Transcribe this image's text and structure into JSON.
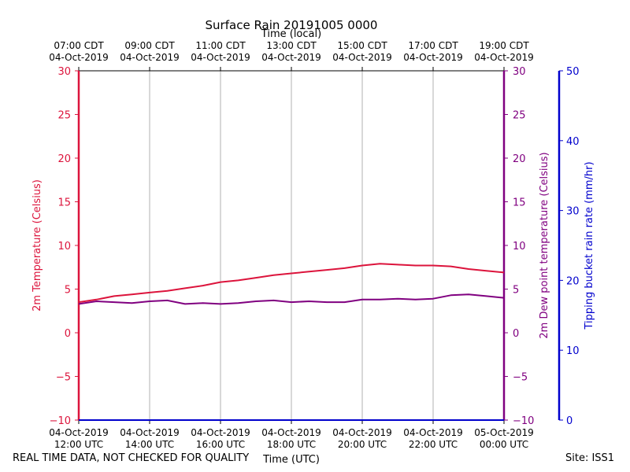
{
  "chart_data": {
    "type": "line",
    "title": "Surface Rain 20191005 0000",
    "top_axis_label": "Time (local)",
    "xlabel": "Time (UTC)",
    "ylabel_left": "2m Temperature (Celsius)",
    "ylabel_right": "2m Dew point temperature (Celsius)",
    "ylabel_right2": "Tipping bucket rain rate (mm/hr)",
    "xlim_hours_utc": [
      "2019-10-04 12:00",
      "2019-10-05 00:00"
    ],
    "ylim_left": [
      -10,
      30
    ],
    "ylim_right": [
      -10,
      30
    ],
    "ylim_right2": [
      0,
      50
    ],
    "grid": "vertical",
    "x_ticks_bottom": [
      {
        "date": "04-Oct-2019",
        "time": "12:00 UTC"
      },
      {
        "date": "04-Oct-2019",
        "time": "14:00 UTC"
      },
      {
        "date": "04-Oct-2019",
        "time": "16:00 UTC"
      },
      {
        "date": "04-Oct-2019",
        "time": "18:00 UTC"
      },
      {
        "date": "04-Oct-2019",
        "time": "20:00 UTC"
      },
      {
        "date": "04-Oct-2019",
        "time": "22:00 UTC"
      },
      {
        "date": "05-Oct-2019",
        "time": "00:00 UTC"
      }
    ],
    "x_ticks_top": [
      {
        "time": "07:00 CDT",
        "date": "04-Oct-2019"
      },
      {
        "time": "09:00 CDT",
        "date": "04-Oct-2019"
      },
      {
        "time": "11:00 CDT",
        "date": "04-Oct-2019"
      },
      {
        "time": "13:00 CDT",
        "date": "04-Oct-2019"
      },
      {
        "time": "15:00 CDT",
        "date": "04-Oct-2019"
      },
      {
        "time": "17:00 CDT",
        "date": "04-Oct-2019"
      },
      {
        "time": "19:00 CDT",
        "date": "04-Oct-2019"
      }
    ],
    "y_ticks_left": [
      "−10",
      "−5",
      "0",
      "5",
      "10",
      "15",
      "20",
      "25",
      "30"
    ],
    "y_ticks_right": [
      "−10",
      "−5",
      "0",
      "5",
      "10",
      "15",
      "20",
      "25",
      "30"
    ],
    "y_ticks_right2": [
      "0",
      "10",
      "20",
      "30",
      "40",
      "50"
    ],
    "colors": {
      "temperature": "#dc143c",
      "dewpoint": "#800080",
      "rain": "#0000cd"
    },
    "series": [
      {
        "key": "temperature",
        "x_hours_utc": [
          12.0,
          12.5,
          13.0,
          13.5,
          14.0,
          14.5,
          15.0,
          15.5,
          16.0,
          16.5,
          17.0,
          17.5,
          18.0,
          18.5,
          19.0,
          19.5,
          20.0,
          20.5,
          21.0,
          21.5,
          22.0,
          22.5,
          23.0,
          23.5,
          24.0
        ],
        "values": [
          3.5,
          3.8,
          4.2,
          4.4,
          4.6,
          4.8,
          5.1,
          5.4,
          5.8,
          6.0,
          6.3,
          6.6,
          6.8,
          7.0,
          7.2,
          7.4,
          7.7,
          7.9,
          7.8,
          7.7,
          7.7,
          7.6,
          7.3,
          7.1,
          6.9
        ]
      },
      {
        "key": "dewpoint",
        "x_hours_utc": [
          12.0,
          12.5,
          13.0,
          13.5,
          14.0,
          14.5,
          15.0,
          15.5,
          16.0,
          16.5,
          17.0,
          17.5,
          18.0,
          18.5,
          19.0,
          19.5,
          20.0,
          20.5,
          21.0,
          21.5,
          22.0,
          22.5,
          23.0,
          23.5,
          24.0
        ],
        "values": [
          3.3,
          3.6,
          3.5,
          3.4,
          3.6,
          3.7,
          3.3,
          3.4,
          3.3,
          3.4,
          3.6,
          3.7,
          3.5,
          3.6,
          3.5,
          3.5,
          3.8,
          3.8,
          3.9,
          3.8,
          3.9,
          4.3,
          4.4,
          4.2,
          4.0
        ]
      },
      {
        "key": "rain",
        "x_hours_utc": [
          12.0,
          24.0
        ],
        "values": [
          0,
          0
        ]
      }
    ]
  },
  "footer": {
    "disclaimer": "REAL TIME DATA, NOT CHECKED FOR QUALITY",
    "site": "Site: ISS1"
  }
}
